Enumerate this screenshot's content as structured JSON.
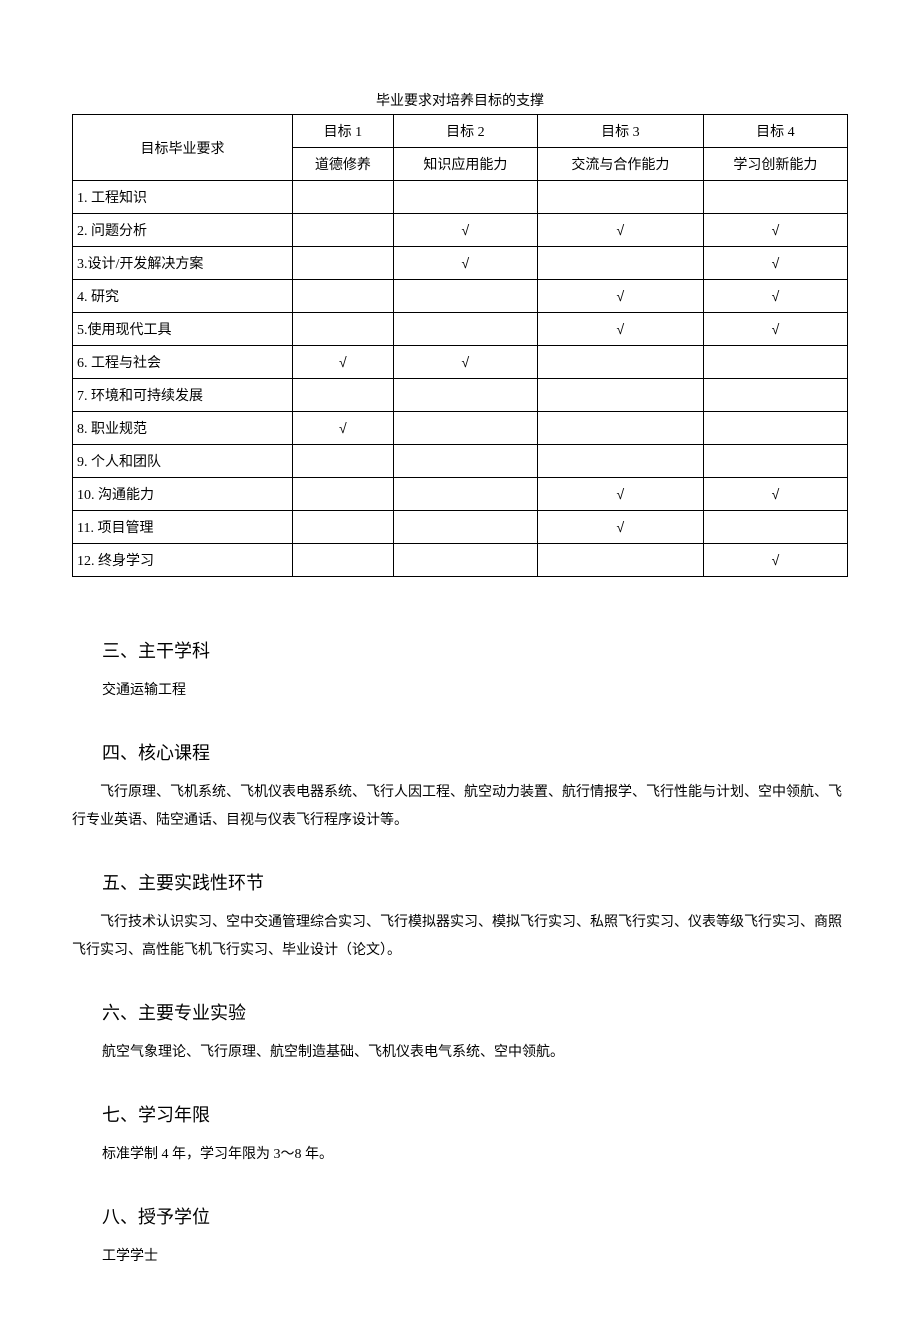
{
  "table": {
    "title": "毕业要求对培养目标的支撑",
    "corner_label": "目标毕业要求",
    "columns": [
      {
        "goal_label": "目标 1",
        "goal_desc": "道德修养"
      },
      {
        "goal_label": "目标 2",
        "goal_desc": "知识应用能力"
      },
      {
        "goal_label": "目标 3",
        "goal_desc": "交流与合作能力"
      },
      {
        "goal_label": "目标 4",
        "goal_desc": "学习创新能力"
      }
    ],
    "rows": [
      {
        "label": "1. 工程知识",
        "checks": [
          false,
          false,
          false,
          false
        ]
      },
      {
        "label": "2. 问题分析",
        "checks": [
          false,
          true,
          true,
          true
        ]
      },
      {
        "label": "3.设计/开发解决方案",
        "checks": [
          false,
          true,
          false,
          true
        ]
      },
      {
        "label": "4. 研究",
        "checks": [
          false,
          false,
          true,
          true
        ]
      },
      {
        "label": "5.使用现代工具",
        "checks": [
          false,
          false,
          true,
          true
        ]
      },
      {
        "label": "6. 工程与社会",
        "checks": [
          true,
          true,
          false,
          false
        ]
      },
      {
        "label": "7. 环境和可持续发展",
        "checks": [
          false,
          false,
          false,
          false
        ]
      },
      {
        "label": "8. 职业规范",
        "checks": [
          true,
          false,
          false,
          false
        ]
      },
      {
        "label": "9. 个人和团队",
        "checks": [
          false,
          false,
          false,
          false
        ]
      },
      {
        "label": "10. 沟通能力",
        "checks": [
          false,
          false,
          true,
          true
        ]
      },
      {
        "label": "11. 项目管理",
        "checks": [
          false,
          false,
          true,
          false
        ]
      },
      {
        "label": "12. 终身学习",
        "checks": [
          false,
          false,
          false,
          true
        ]
      }
    ],
    "check_symbol": "√"
  },
  "sections": [
    {
      "heading": "三、主干学科",
      "body": "交通运输工程",
      "indent": false
    },
    {
      "heading": "四、核心课程",
      "body": "飞行原理、飞机系统、飞机仪表电器系统、飞行人因工程、航空动力装置、航行情报学、飞行性能与计划、空中领航、飞行专业英语、陆空通话、目视与仪表飞行程序设计等。",
      "indent": true
    },
    {
      "heading": "五、主要实践性环节",
      "body": "飞行技术认识实习、空中交通管理综合实习、飞行模拟器实习、模拟飞行实习、私照飞行实习、仪表等级飞行实习、商照飞行实习、高性能飞机飞行实习、毕业设计（论文）。",
      "indent": true
    },
    {
      "heading": "六、主要专业实验",
      "body": "航空气象理论、飞行原理、航空制造基础、飞机仪表电气系统、空中领航。",
      "indent": false
    },
    {
      "heading": "七、学习年限",
      "body": "标准学制 4 年，学习年限为 3～8 年。",
      "indent": false
    },
    {
      "heading": "八、授予学位",
      "body": "工学学士",
      "indent": false
    }
  ]
}
